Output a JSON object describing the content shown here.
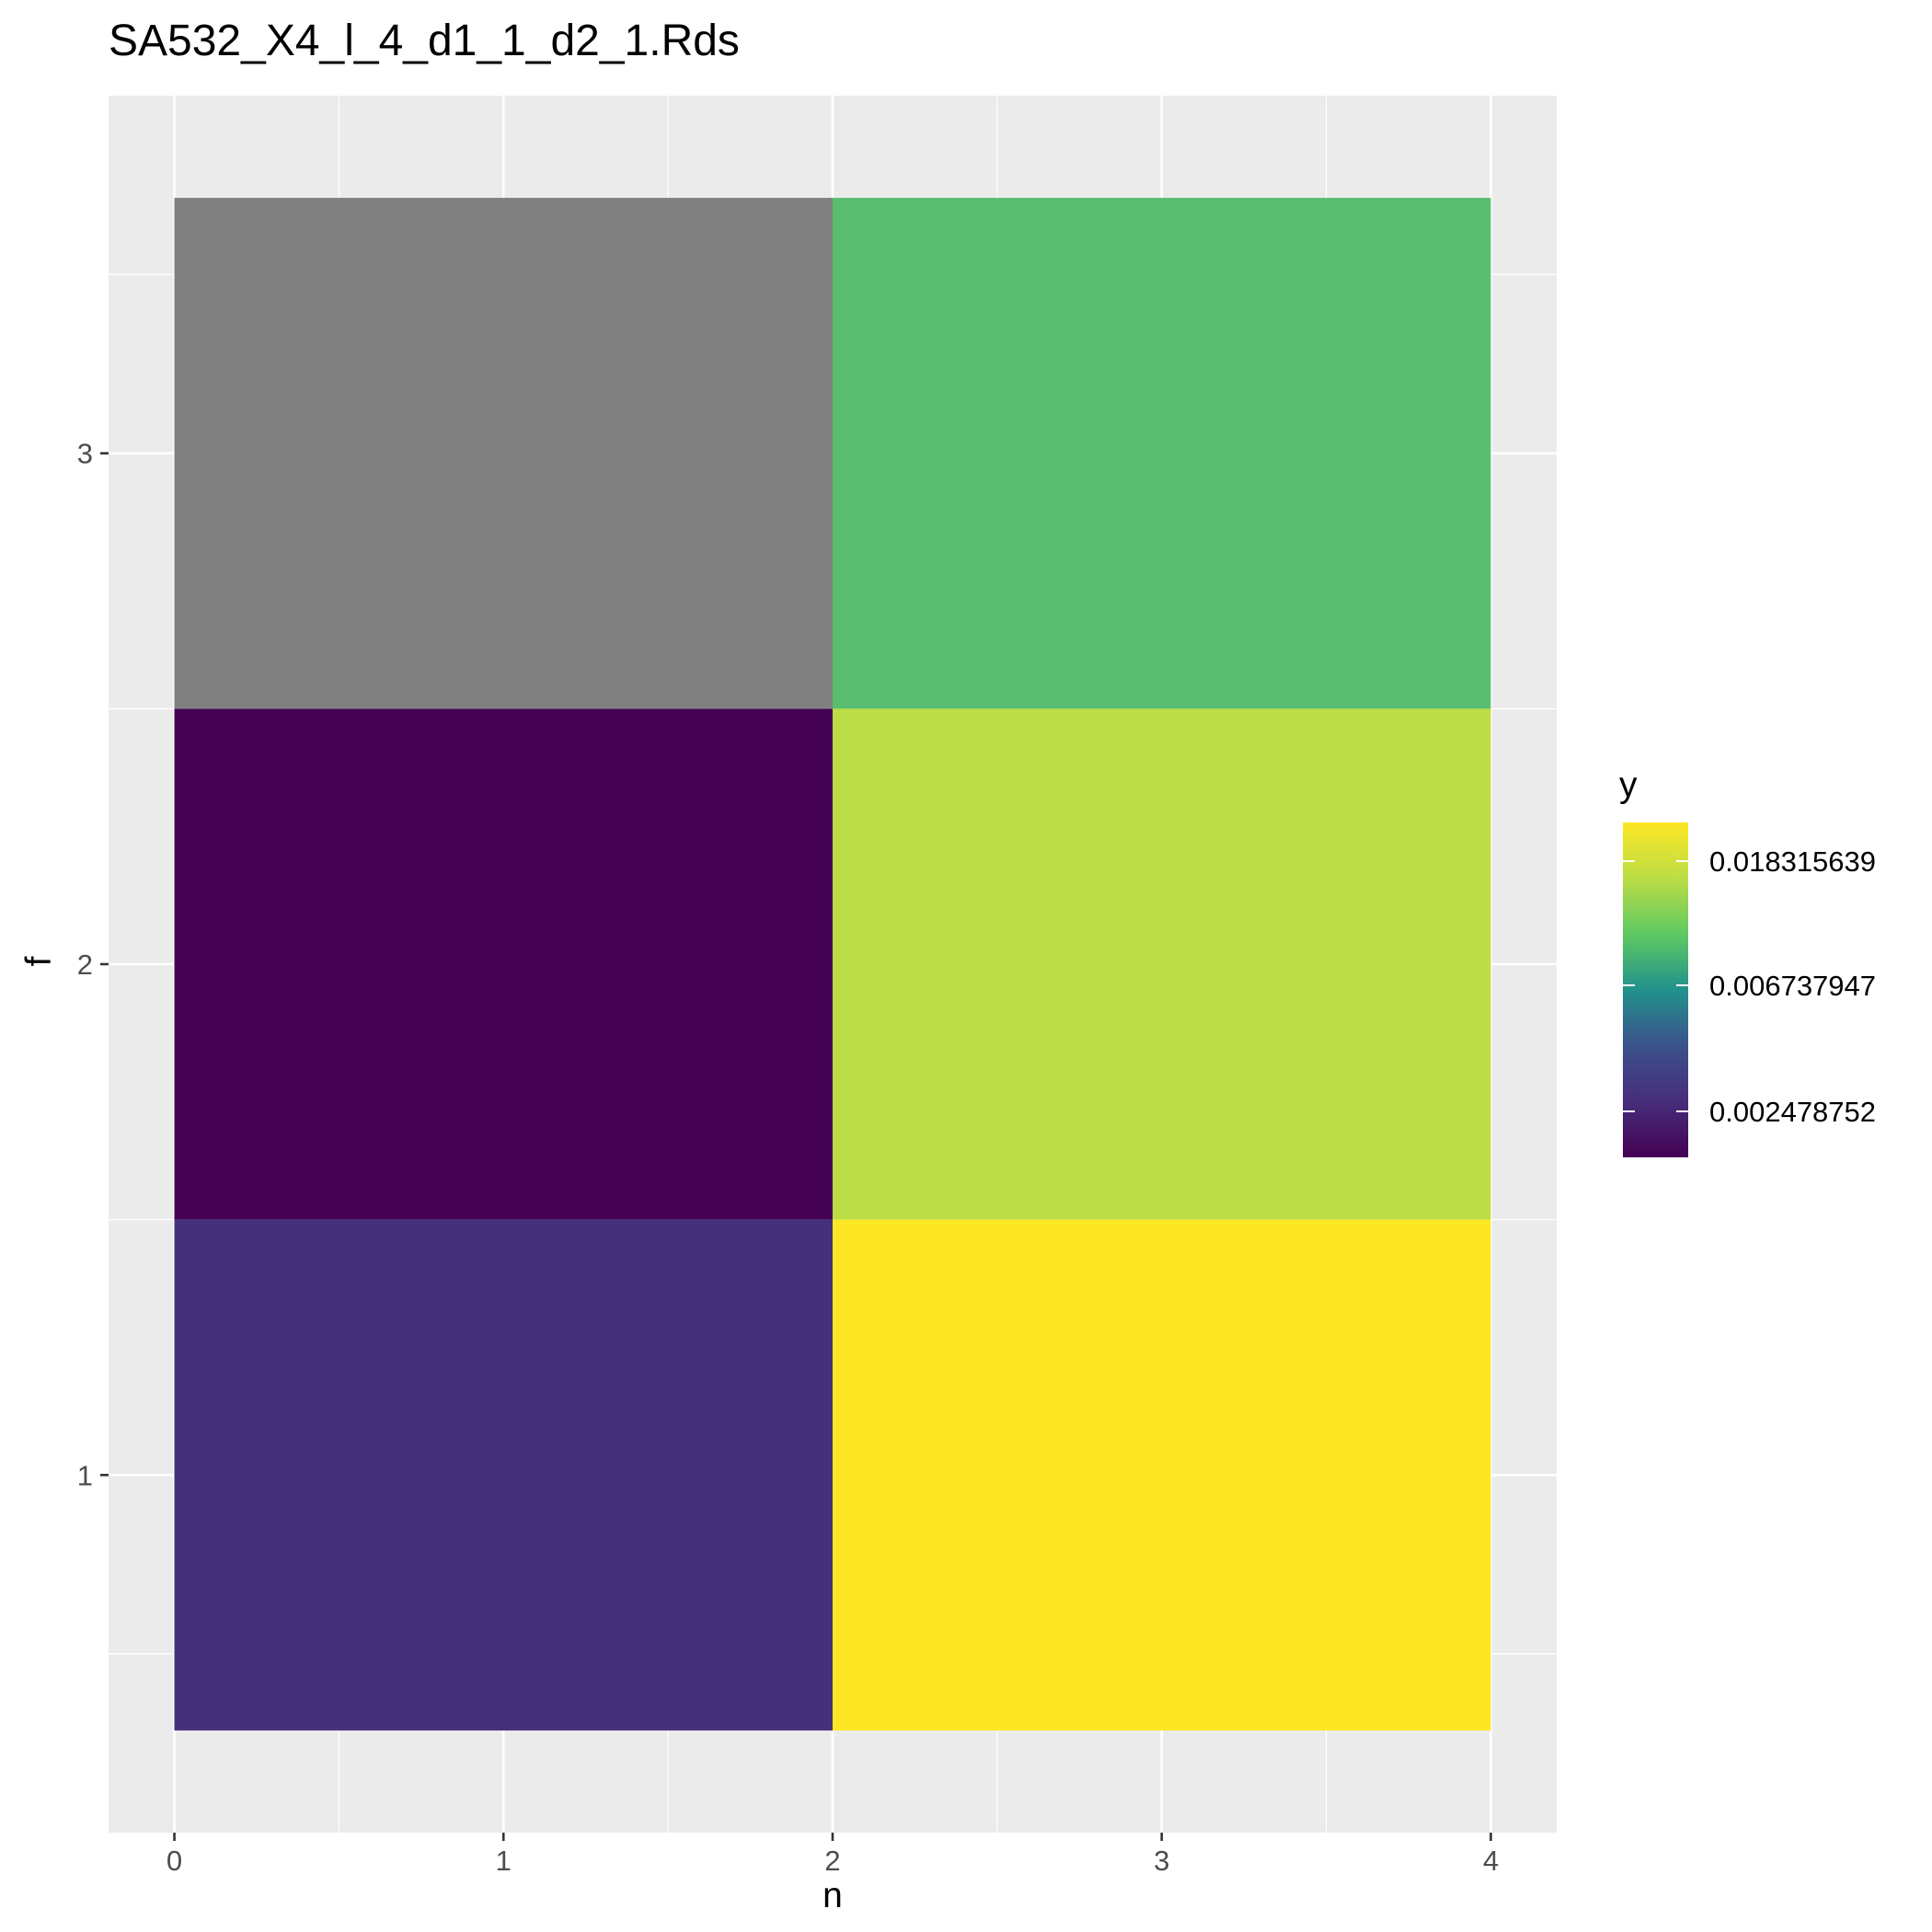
{
  "chart_data": {
    "type": "heatmap",
    "title": "SA532_X4_l_4_d1_1_d2_1.Rds",
    "xlabel": "n",
    "ylabel": "f",
    "xlim": [
      -0.2,
      4.2
    ],
    "ylim": [
      0.3,
      3.7
    ],
    "x_ticks": [
      "0",
      "1",
      "2",
      "3",
      "4"
    ],
    "y_ticks": [
      "1",
      "2",
      "3"
    ],
    "grid": true,
    "fill_scale": "log",
    "cells": [
      {
        "x": 1,
        "y": 1,
        "width": 2,
        "fill": "#45317a"
      },
      {
        "x": 3,
        "y": 1,
        "width": 2,
        "fill": "#fde725"
      },
      {
        "x": 1,
        "y": 2,
        "width": 2,
        "fill": "#440154"
      },
      {
        "x": 3,
        "y": 2,
        "width": 2,
        "fill": "#bcdd45"
      },
      {
        "x": 1,
        "y": 3,
        "width": 2,
        "fill": "#808080"
      },
      {
        "x": 3,
        "y": 3,
        "width": 2,
        "fill": "#5abe70"
      }
    ],
    "legend": {
      "title": "y",
      "position": "right",
      "breaks": [
        "0.018315639",
        "0.006737947",
        "0.002478752"
      ],
      "colors": [
        "#fde725",
        "#bcdd45",
        "#5ec962",
        "#21918c",
        "#3b528b",
        "#472d7b",
        "#440154"
      ]
    }
  }
}
